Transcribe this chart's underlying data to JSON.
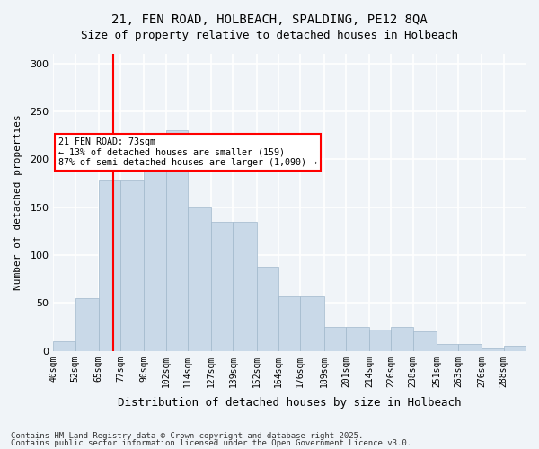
{
  "title_line1": "21, FEN ROAD, HOLBEACH, SPALDING, PE12 8QA",
  "title_line2": "Size of property relative to detached houses in Holbeach",
  "xlabel": "Distribution of detached houses by size in Holbeach",
  "ylabel": "Number of detached properties",
  "footnote1": "Contains HM Land Registry data © Crown copyright and database right 2025.",
  "footnote2": "Contains public sector information licensed under the Open Government Licence v3.0.",
  "annotation_line1": "21 FEN ROAD: 73sqm",
  "annotation_line2": "← 13% of detached houses are smaller (159)",
  "annotation_line3": "87% of semi-detached houses are larger (1,090) →",
  "red_line_x": 73,
  "bar_color": "#c9d9e8",
  "bar_edge_color": "#a0b8cc",
  "background_color": "#f0f4f8",
  "grid_color": "#ffffff",
  "categories": [
    "40sqm",
    "52sqm",
    "65sqm",
    "77sqm",
    "90sqm",
    "102sqm",
    "114sqm",
    "127sqm",
    "139sqm",
    "152sqm",
    "164sqm",
    "176sqm",
    "189sqm",
    "201sqm",
    "214sqm",
    "226sqm",
    "238sqm",
    "251sqm",
    "263sqm",
    "276sqm",
    "288sqm"
  ],
  "bin_edges": [
    40,
    52,
    65,
    77,
    90,
    102,
    114,
    127,
    139,
    152,
    164,
    176,
    189,
    201,
    214,
    226,
    238,
    251,
    263,
    276,
    288
  ],
  "values": [
    10,
    55,
    178,
    178,
    220,
    230,
    150,
    135,
    135,
    88,
    57,
    57,
    25,
    25,
    22,
    25,
    20,
    7,
    7,
    3,
    5
  ],
  "ylim": [
    0,
    310
  ],
  "yticks": [
    0,
    50,
    100,
    150,
    200,
    250,
    300
  ]
}
